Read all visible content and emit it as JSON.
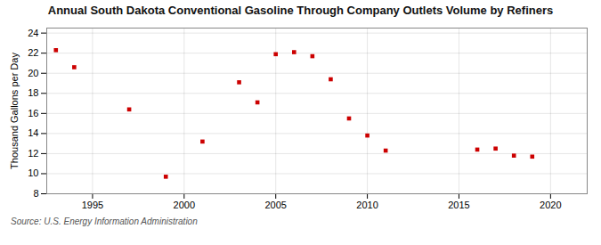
{
  "chart_data": {
    "type": "scatter",
    "title": "Annual South Dakota Conventional Gasoline Through Company Outlets Volume by Refiners",
    "ylabel": "Thousand Gallons per Day",
    "source": "Source: U.S. Energy Information Administration",
    "x": [
      1993,
      1994,
      1997,
      1999,
      2001,
      2003,
      2004,
      2005,
      2006,
      2007,
      2008,
      2009,
      2010,
      2011,
      2016,
      2017,
      2018,
      2019
    ],
    "values": [
      22.3,
      20.6,
      16.4,
      9.7,
      13.2,
      19.1,
      17.1,
      21.9,
      22.1,
      21.7,
      19.4,
      15.5,
      13.8,
      12.3,
      12.4,
      12.5,
      11.8,
      11.7
    ],
    "color": "#cc0000",
    "marker": "square",
    "xlim": [
      1992.5,
      2022
    ],
    "ylim": [
      8,
      24.5
    ],
    "xticks": [
      1995,
      2000,
      2005,
      2010,
      2015,
      2020
    ],
    "yticks": [
      8,
      10,
      12,
      14,
      16,
      18,
      20,
      22,
      24
    ],
    "grid": true
  }
}
